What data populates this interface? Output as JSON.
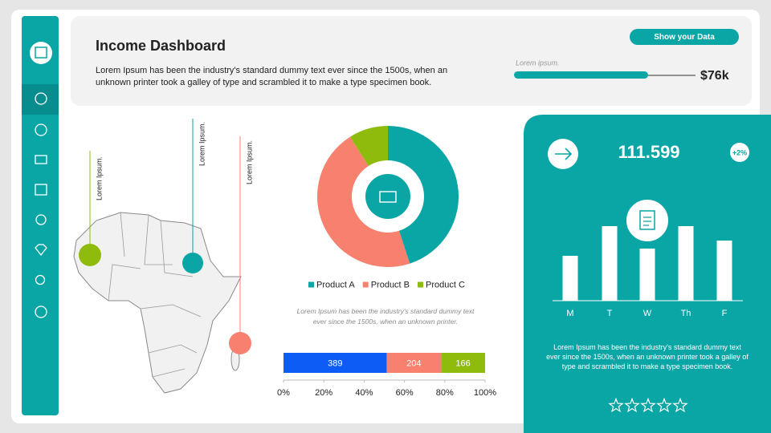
{
  "header": {
    "title": "Income Dashboard",
    "text": "Lorem Ipsum has been the industry's standard dummy text ever since the 1500s, when an unknown printer took a galley of type and scrambled it to make a type specimen book.",
    "button": "Show your Data",
    "progress_label": "Lorem ipsum.",
    "progress_value": "$76k"
  },
  "map": {
    "labels": [
      "Lorem Ipsum.",
      "Lorem Ipsum.",
      "Lorem Ipsum."
    ]
  },
  "donut_caption": "Lorem Ipsum has been the industry's standard dummy text ever since the 1500s, when an unknown printer.",
  "panel": {
    "value": "111.599",
    "badge": "+2%",
    "text": "Lorem Ipsum has been the industry's standard dummy text ever since the 1500s, when an unknown printer took a galley of type and scrambled it to make a type specimen book."
  },
  "chart_data": [
    {
      "type": "pie",
      "donut": true,
      "categories": [
        "Product A",
        "Product B",
        "Product C"
      ],
      "values": [
        45,
        46,
        9
      ],
      "colors": [
        "#0aa5a5",
        "#f8806f",
        "#8fbc0c"
      ],
      "legend": "bottom"
    },
    {
      "type": "bar",
      "orientation": "horizontal",
      "stacked": "percent",
      "values": [
        389,
        204,
        166
      ],
      "colors": [
        "#0d5cf5",
        "#f8806f",
        "#8fbc0c"
      ],
      "xlim": [
        0,
        100
      ],
      "xticks": [
        {
          "value": 0,
          "label": "0%"
        },
        {
          "value": 20,
          "label": "20%"
        },
        {
          "value": 40,
          "label": "40%"
        },
        {
          "value": 60,
          "label": "60%"
        },
        {
          "value": 80,
          "label": "80%"
        },
        {
          "value": 100,
          "label": "100%"
        }
      ]
    },
    {
      "type": "bar",
      "orientation": "vertical",
      "categories": [
        "M",
        "T",
        "W",
        "Th",
        "F"
      ],
      "values": [
        56,
        93,
        65,
        93,
        75
      ],
      "color": "#ffffff"
    }
  ]
}
